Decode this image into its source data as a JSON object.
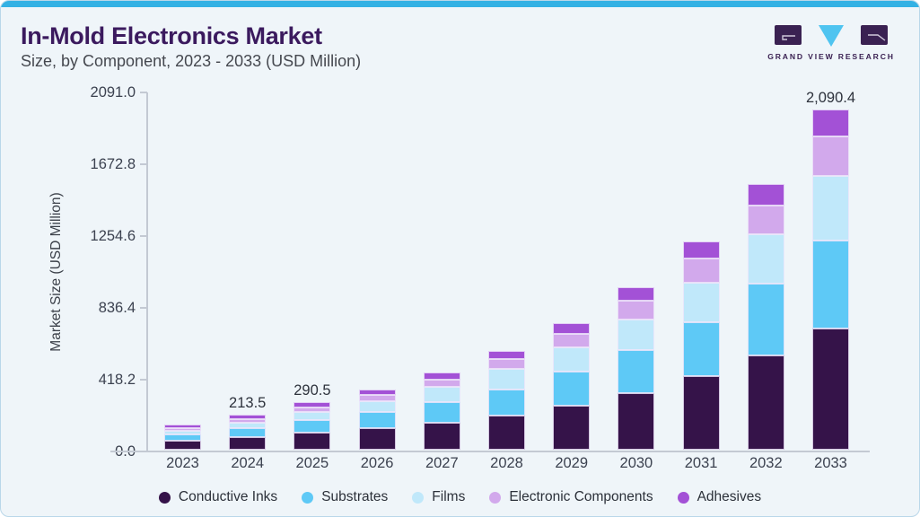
{
  "header": {
    "title": "In-Mold Electronics Market",
    "subtitle": "Size, by Component, 2023 - 2033 (USD Million)",
    "title_color": "#3b1a5e",
    "accent_color": "#33b1e4"
  },
  "logo": {
    "text": "GRAND VIEW RESEARCH",
    "color": "#3a2152",
    "triangle_color": "#4fc4f0"
  },
  "chart_data": {
    "type": "bar",
    "stacked": true,
    "title": "In-Mold Electronics Market Size, by Component, 2023 - 2033 (USD Million)",
    "xlabel": "",
    "ylabel": "Market Size (USD Million)",
    "ylim": [
      0,
      2091
    ],
    "grid": false,
    "legend_position": "bottom",
    "y_tick_labels": [
      "2091.0",
      "1672.8",
      "1254.6",
      "836.4",
      "418.2",
      "0.0"
    ],
    "y_tick_values": [
      2091.0,
      1672.8,
      1254.6,
      836.4,
      418.2,
      0.0
    ],
    "categories": [
      "2023",
      "2024",
      "2025",
      "2026",
      "2027",
      "2028",
      "2029",
      "2030",
      "2031",
      "2032",
      "2033"
    ],
    "totals": [
      152.0,
      213.5,
      290.5,
      371.8,
      475.8,
      608.9,
      779.3,
      997.4,
      1276.5,
      1633.7,
      2090.4
    ],
    "bar_labels": [
      "",
      "213.5",
      "290.5",
      "",
      "",
      "",
      "",
      "",
      "",
      "",
      "2,090.4"
    ],
    "series": [
      {
        "name": "Conductive Inks",
        "color": "#351349",
        "values": [
          54.7,
          76.9,
          103.1,
          130.1,
          165.6,
          211.3,
          269.6,
          345.1,
          451.9,
          578.3,
          742.1
        ]
      },
      {
        "name": "Substrates",
        "color": "#5ec9f6",
        "values": [
          36.5,
          56.6,
          77.9,
          99.3,
          124.7,
          158.9,
          207.3,
          267.3,
          333.2,
          439.5,
          541.4
        ]
      },
      {
        "name": "Films",
        "color": "#c0e8fa",
        "values": [
          23.6,
          31.0,
          48.5,
          68.0,
          94.2,
          124.8,
          152.7,
          187.5,
          241.3,
          305.5,
          397.2
        ]
      },
      {
        "name": "Electronic Components",
        "color": "#d2a9ec",
        "values": [
          18.2,
          22.6,
          32.0,
          39.0,
          47.6,
          59.7,
          83.4,
          112.7,
          146.8,
          178.1,
          244.6
        ]
      },
      {
        "name": "Adhesives",
        "color": "#a351d6",
        "values": [
          19.0,
          26.4,
          29.0,
          35.4,
          43.7,
          54.2,
          66.3,
          84.8,
          103.3,
          132.3,
          165.1
        ]
      }
    ]
  }
}
